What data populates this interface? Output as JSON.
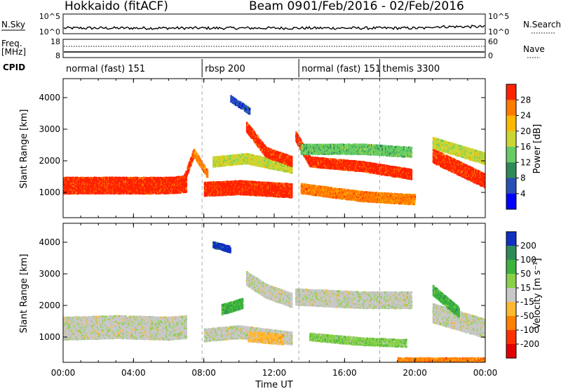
{
  "header": {
    "station": "Hokkaido (fitACF)",
    "beam": "Beam 09",
    "date_range": "01/Feb/2016 - 02/Feb/2016"
  },
  "strip_labels": {
    "nsky": "N.Sky",
    "nsearch": "N.Search",
    "freq_top": "Freq.",
    "freq_unit": "[MHz]",
    "nave": "Nave",
    "cpid": "CPID"
  },
  "strip_ticks": {
    "nsky_left": [
      "10^5",
      "10^0"
    ],
    "nsky_right": [
      "10^5",
      "10^0"
    ],
    "freq_left": [
      "18",
      "8"
    ],
    "freq_right": [
      "60",
      "0"
    ]
  },
  "cpid_segments": [
    {
      "label": "normal (fast) 151",
      "start": 0,
      "end": 7.9
    },
    {
      "label": "rbsp 200",
      "start": 7.9,
      "end": 13.4
    },
    {
      "label": "normal (fast) 151",
      "start": 13.4,
      "end": 18.0
    },
    {
      "label": "themis 3300",
      "start": 18.0,
      "end": 24
    }
  ],
  "chart_data": [
    {
      "type": "heatmap",
      "panel": "power",
      "ylabel": "Slant Range [km]",
      "xlim": [
        0,
        24
      ],
      "ylim": [
        200,
        4600
      ],
      "yticks": [
        "1000",
        "2000",
        "3000",
        "4000"
      ],
      "colorbar_label": "Power [dB]",
      "colorbar_ticks": [
        "4",
        "8",
        "12",
        "16",
        "20",
        "24",
        "28"
      ],
      "colors": [
        "#0000ff",
        "#2850b4",
        "#2e8b57",
        "#66cc66",
        "#ccd633",
        "#ffb800",
        "#ff7a00",
        "#ff2200"
      ],
      "bands": [
        {
          "x": [
            0.0,
            3.0,
            6.0,
            7.0
          ],
          "y": [
            1250,
            1250,
            1250,
            1300
          ],
          "w": 500,
          "c": 7
        },
        {
          "x": [
            6.8,
            7.4
          ],
          "y": [
            1400,
            2300
          ],
          "w": 250,
          "c": 7
        },
        {
          "x": [
            7.4,
            8.2
          ],
          "y": [
            2300,
            1600
          ],
          "w": 250,
          "c": 6
        },
        {
          "x": [
            8.0,
            10.0,
            13.0
          ],
          "y": [
            1150,
            1200,
            1100
          ],
          "w": 450,
          "c": 7
        },
        {
          "x": [
            8.5,
            10.4,
            13.0
          ],
          "y": [
            2000,
            2100,
            1800
          ],
          "w": 300,
          "c": 4
        },
        {
          "x": [
            10.4,
            11.5,
            13.0
          ],
          "y": [
            3100,
            2300,
            2000
          ],
          "w": 300,
          "c": 7
        },
        {
          "x": [
            13.2,
            14.0,
            17.0,
            19.8
          ],
          "y": [
            2800,
            2000,
            1850,
            1600
          ],
          "w": 300,
          "c": 7
        },
        {
          "x": [
            13.5,
            17.0,
            19.8
          ],
          "y": [
            2400,
            2400,
            2300
          ],
          "w": 300,
          "c": 3
        },
        {
          "x": [
            13.5,
            17.0,
            20.0
          ],
          "y": [
            1150,
            900,
            800
          ],
          "w": 300,
          "c": 6
        },
        {
          "x": [
            21.0,
            24.0
          ],
          "y": [
            2200,
            1400
          ],
          "w": 450,
          "c": 7
        },
        {
          "x": [
            21.0,
            24.0
          ],
          "y": [
            2600,
            2100
          ],
          "w": 350,
          "c": 4
        },
        {
          "x": [
            9.5,
            10.6
          ],
          "y": [
            4000,
            3600
          ],
          "w": 200,
          "c": 1
        }
      ]
    },
    {
      "type": "heatmap",
      "panel": "velocity",
      "ylabel": "Slant Range [km]",
      "xlabel": "Time UT",
      "xlim": [
        0,
        24
      ],
      "ylim": [
        200,
        4600
      ],
      "yticks": [
        "1000",
        "2000",
        "3000",
        "4000"
      ],
      "xticks": [
        "00:00",
        "04:00",
        "08:00",
        "12:00",
        "16:00",
        "20:00",
        "00:00"
      ],
      "colorbar_label": "Velocity [m s⁻¹]",
      "colorbar_ticks": [
        "200",
        "100",
        "50",
        "15",
        "-15",
        "-50",
        "-100",
        "-200"
      ],
      "colors": [
        "#1030c0",
        "#2e8b57",
        "#3cb43c",
        "#88d048",
        "#c8c8c8",
        "#ffb830",
        "#ff8000",
        "#ff3000",
        "#e00000"
      ],
      "bands": [
        {
          "x": [
            0.0,
            3.0,
            6.0,
            7.0
          ],
          "y": [
            1300,
            1350,
            1300,
            1350
          ],
          "w": 700,
          "c": 4
        },
        {
          "x": [
            8.0,
            10.0,
            13.0
          ],
          "y": [
            1100,
            1200,
            1000
          ],
          "w": 400,
          "c": 4
        },
        {
          "x": [
            9.0,
            10.2
          ],
          "y": [
            1900,
            2100
          ],
          "w": 300,
          "c": 2
        },
        {
          "x": [
            10.4,
            11.5,
            13.0
          ],
          "y": [
            2900,
            2500,
            2200
          ],
          "w": 450,
          "c": 4
        },
        {
          "x": [
            10.5,
            12.5
          ],
          "y": [
            1050,
            950
          ],
          "w": 300,
          "c": 5
        },
        {
          "x": [
            13.2,
            17.0,
            19.8
          ],
          "y": [
            2300,
            2200,
            2200
          ],
          "w": 500,
          "c": 4
        },
        {
          "x": [
            14.0,
            17.0,
            19.5
          ],
          "y": [
            1050,
            900,
            850
          ],
          "w": 250,
          "c": 3
        },
        {
          "x": [
            21.0,
            24.0
          ],
          "y": [
            1800,
            1300
          ],
          "w": 600,
          "c": 4
        },
        {
          "x": [
            21.0,
            22.5
          ],
          "y": [
            2500,
            1800
          ],
          "w": 300,
          "c": 2
        },
        {
          "x": [
            19.0,
            24.0
          ],
          "y": [
            300,
            300
          ],
          "w": 150,
          "c": 6
        },
        {
          "x": [
            8.5,
            9.5
          ],
          "y": [
            3950,
            3800
          ],
          "w": 180,
          "c": 0
        }
      ]
    }
  ]
}
